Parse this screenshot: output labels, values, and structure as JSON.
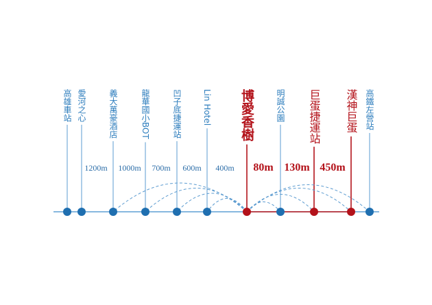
{
  "stations": [
    {
      "label": "高雄車站",
      "highlight": false
    },
    {
      "label": "愛河之心",
      "highlight": false
    },
    {
      "label": "義大萬豪酒店",
      "highlight": false
    },
    {
      "label": "龍華國小BOT",
      "highlight": false
    },
    {
      "label": "凹子底捷運站",
      "highlight": false
    },
    {
      "label": "Lin Hotel",
      "highlight": false
    },
    {
      "label": "博愛香樹",
      "highlight": true
    },
    {
      "label": "明誠公園",
      "highlight": false
    },
    {
      "label": "巨蛋捷運站",
      "highlight": true
    },
    {
      "label": "漢神巨蛋",
      "highlight": true
    },
    {
      "label": "高鐵左營站",
      "highlight": false
    }
  ],
  "distances": [
    {
      "label": "1200m",
      "highlight": false
    },
    {
      "label": "1000m",
      "highlight": false
    },
    {
      "label": "700m",
      "highlight": false
    },
    {
      "label": "600m",
      "highlight": false
    },
    {
      "label": "400m",
      "highlight": false
    },
    {
      "label": "80m",
      "highlight": true
    },
    {
      "label": "130m",
      "highlight": true
    },
    {
      "label": "450m",
      "highlight": true
    }
  ]
}
